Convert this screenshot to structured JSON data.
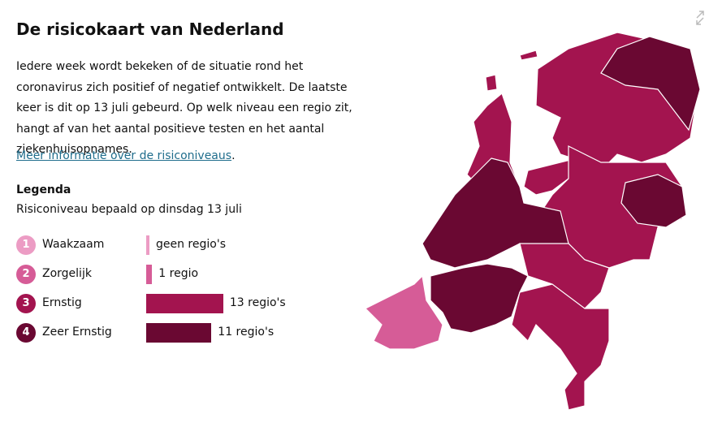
{
  "header": {
    "title": "De risicokaart van Nederland"
  },
  "intro": "Iedere week wordt bekeken of de situatie rond het coronavirus zich positief of negatief ontwikkelt. De laatste keer is dit op 13 juli gebeurd. Op welk niveau een regio zit, hangt af van het aantal positieve testen en het aantal ziekenhuisopnames.",
  "info_link": {
    "text": "Meer informatie over de risiconiveaus",
    "suffix": "."
  },
  "legend": {
    "title": "Legenda",
    "subtitle": "Risiconiveau bepaald op dinsdag 13 juli",
    "levels": [
      {
        "number": 1,
        "label": "Waakzaam",
        "color": "#ec9cc4",
        "count": 0,
        "count_label": "geen regio's"
      },
      {
        "number": 2,
        "label": "Zorgelijk",
        "color": "#d65c97",
        "count": 1,
        "count_label": "1 regio"
      },
      {
        "number": 3,
        "label": "Ernstig",
        "color": "#a3144f",
        "count": 13,
        "count_label": "13 regio's"
      },
      {
        "number": 4,
        "label": "Zeer Ernstig",
        "color": "#6a0832",
        "count": 11,
        "count_label": "11 regio's"
      }
    ]
  }
}
